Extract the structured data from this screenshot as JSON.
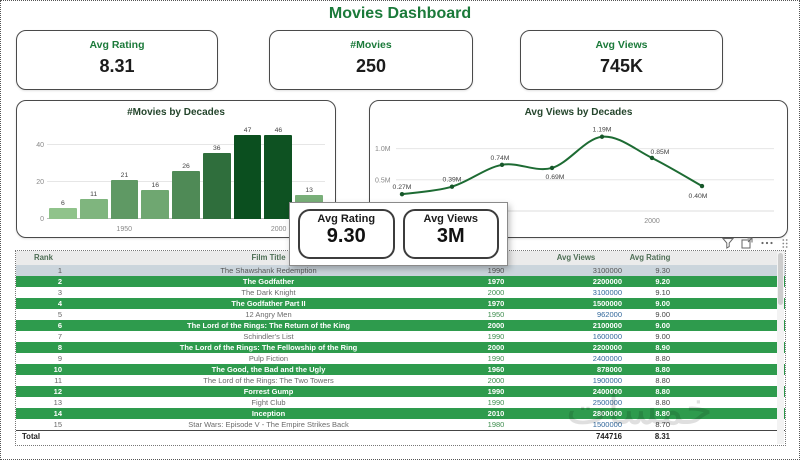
{
  "page": {
    "title": "Movies Dashboard"
  },
  "kpis": [
    {
      "label": "Avg Rating",
      "value": "8.31"
    },
    {
      "label": "#Movies",
      "value": "250"
    },
    {
      "label": "Avg Views",
      "value": "745K"
    }
  ],
  "chart_data": [
    {
      "type": "bar",
      "title": "#Movies by Decades",
      "categories": [
        1930,
        1940,
        1950,
        1960,
        1970,
        1980,
        1990,
        2000,
        2010
      ],
      "values": [
        6,
        11,
        21,
        16,
        26,
        36,
        47,
        46,
        13
      ],
      "ylim": [
        0,
        50
      ],
      "yticks": [
        0,
        20,
        40
      ],
      "xticks_visible": [
        "1950",
        "2000"
      ],
      "color_scale": [
        "#a3d49b",
        "#0b4f1f"
      ]
    },
    {
      "type": "line",
      "title": "Avg Views by Decades",
      "categories": [
        1950,
        1960,
        1970,
        1980,
        1990,
        2000,
        2010
      ],
      "values_m": [
        0.27,
        0.39,
        0.74,
        0.69,
        1.19,
        0.85,
        0.4
      ],
      "point_labels": [
        "0.27M",
        "0.39M",
        "0.74M",
        "0.69M",
        "1.19M",
        "0.85M",
        "0.40M"
      ],
      "yticks": [
        "0.5M",
        "1.0M"
      ],
      "ylim_m": [
        0,
        1.25
      ],
      "xticks_visible": [
        "2000"
      ],
      "line_color": "#1d6b33"
    }
  ],
  "tooltip": {
    "items": [
      {
        "label": "Avg Rating",
        "value": "9.30"
      },
      {
        "label": "Avg Views",
        "value": "3M"
      }
    ]
  },
  "table": {
    "columns": [
      "Rank",
      "Film Title",
      "",
      "Avg Views",
      "Avg Rating"
    ],
    "rows": [
      {
        "rank": "1",
        "title": "The Shawshank Redemption",
        "year": "1990",
        "views": "3100000",
        "rating": "9.30",
        "style": "selected"
      },
      {
        "rank": "2",
        "title": "The Godfather",
        "year": "1970",
        "views": "2200000",
        "rating": "9.20",
        "style": "green"
      },
      {
        "rank": "3",
        "title": "The Dark Knight",
        "year": "2000",
        "views": "3100000",
        "rating": "9.10",
        "style": "white"
      },
      {
        "rank": "4",
        "title": "The Godfather Part II",
        "year": "1970",
        "views": "1500000",
        "rating": "9.00",
        "style": "green"
      },
      {
        "rank": "5",
        "title": "12 Angry Men",
        "year": "1950",
        "views": "962000",
        "rating": "9.00",
        "style": "white"
      },
      {
        "rank": "6",
        "title": "The Lord of the Rings: The Return of the King",
        "year": "2000",
        "views": "2100000",
        "rating": "9.00",
        "style": "green"
      },
      {
        "rank": "7",
        "title": "Schindler's List",
        "year": "1990",
        "views": "1600000",
        "rating": "9.00",
        "style": "white"
      },
      {
        "rank": "8",
        "title": "The Lord of the Rings: The Fellowship of the Ring",
        "year": "2000",
        "views": "2200000",
        "rating": "8.90",
        "style": "green"
      },
      {
        "rank": "9",
        "title": "Pulp Fiction",
        "year": "1990",
        "views": "2400000",
        "rating": "8.80",
        "style": "white"
      },
      {
        "rank": "10",
        "title": "The Good, the Bad and the Ugly",
        "year": "1960",
        "views": "878000",
        "rating": "8.80",
        "style": "green"
      },
      {
        "rank": "11",
        "title": "The Lord of the Rings: The Two Towers",
        "year": "2000",
        "views": "1900000",
        "rating": "8.80",
        "style": "white"
      },
      {
        "rank": "12",
        "title": "Forrest Gump",
        "year": "1990",
        "views": "2400000",
        "rating": "8.80",
        "style": "green"
      },
      {
        "rank": "13",
        "title": "Fight Club",
        "year": "1990",
        "views": "2500000",
        "rating": "8.80",
        "style": "white"
      },
      {
        "rank": "14",
        "title": "Inception",
        "year": "2010",
        "views": "2800000",
        "rating": "8.80",
        "style": "green"
      },
      {
        "rank": "15",
        "title": "Star Wars: Episode V - The Empire Strikes Back",
        "year": "1980",
        "views": "1500000",
        "rating": "8.70",
        "style": "white"
      }
    ],
    "total": {
      "label": "Total",
      "views": "744716",
      "rating": "8.31"
    }
  },
  "watermark": "خمسات"
}
